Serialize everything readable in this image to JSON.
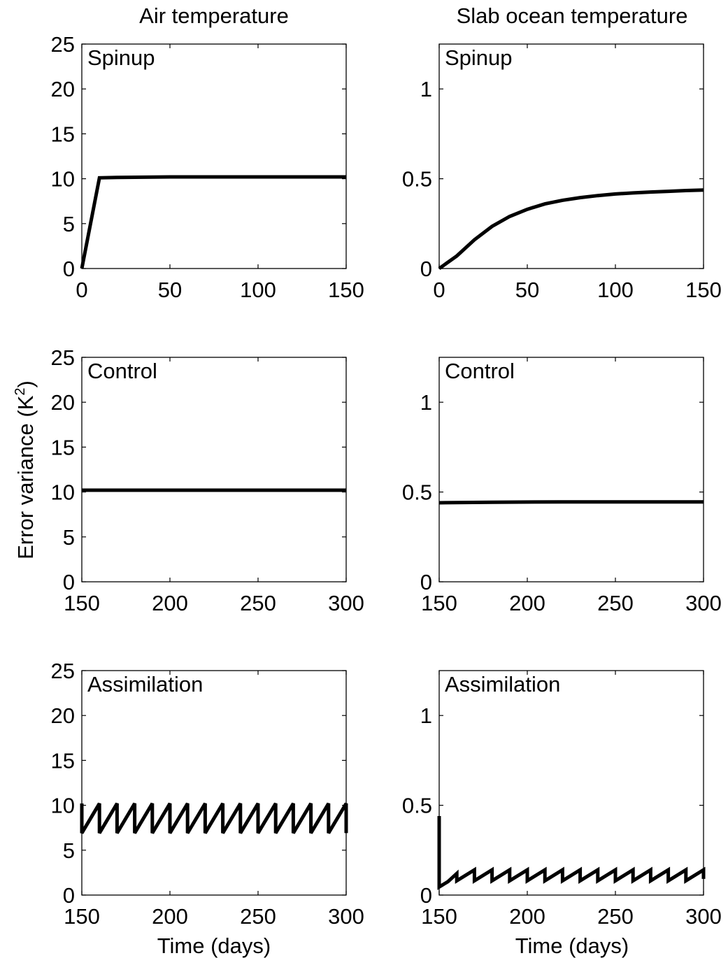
{
  "figure": {
    "column_titles": [
      "Air temperature",
      "Slab ocean temperature"
    ],
    "ylabel": "Error variance (K",
    "ylabel_sup": "2",
    "ylabel_close": ")",
    "xlabel": "Time (days)"
  },
  "chart_data": [
    {
      "type": "line",
      "panel": "Spinup",
      "column": "Air temperature",
      "xlim": [
        0,
        150
      ],
      "ylim": [
        0,
        25
      ],
      "xticks": [
        0,
        50,
        100,
        150
      ],
      "yticks": [
        0,
        5,
        10,
        15,
        20,
        25
      ],
      "grid": false,
      "series": [
        {
          "x": [
            0,
            10,
            20,
            50,
            100,
            150
          ],
          "y": [
            0,
            10.1,
            10.15,
            10.2,
            10.2,
            10.2
          ]
        }
      ]
    },
    {
      "type": "line",
      "panel": "Spinup",
      "column": "Slab ocean temperature",
      "xlim": [
        0,
        150
      ],
      "ylim": [
        0,
        1.25
      ],
      "xticks": [
        0,
        50,
        100,
        150
      ],
      "yticks": [
        0,
        0.5,
        1
      ],
      "grid": false,
      "series": [
        {
          "x": [
            0,
            10,
            20,
            30,
            40,
            50,
            60,
            70,
            80,
            90,
            100,
            110,
            120,
            130,
            140,
            150
          ],
          "y": [
            0,
            0.07,
            0.16,
            0.235,
            0.29,
            0.33,
            0.36,
            0.38,
            0.395,
            0.406,
            0.415,
            0.421,
            0.426,
            0.43,
            0.434,
            0.437
          ]
        }
      ]
    },
    {
      "type": "line",
      "panel": "Control",
      "column": "Air temperature",
      "xlim": [
        150,
        300
      ],
      "ylim": [
        0,
        25
      ],
      "xticks": [
        150,
        200,
        250,
        300
      ],
      "yticks": [
        0,
        5,
        10,
        15,
        20,
        25
      ],
      "grid": false,
      "series": [
        {
          "x": [
            150,
            300
          ],
          "y": [
            10.2,
            10.2
          ]
        }
      ]
    },
    {
      "type": "line",
      "panel": "Control",
      "column": "Slab ocean temperature",
      "xlim": [
        150,
        300
      ],
      "ylim": [
        0,
        1.25
      ],
      "xticks": [
        150,
        200,
        250,
        300
      ],
      "yticks": [
        0,
        0.5,
        1
      ],
      "grid": false,
      "series": [
        {
          "x": [
            150,
            180,
            220,
            260,
            300
          ],
          "y": [
            0.44,
            0.443,
            0.445,
            0.445,
            0.445
          ]
        }
      ]
    },
    {
      "type": "line",
      "panel": "Assimilation",
      "column": "Air temperature",
      "xlim": [
        150,
        300
      ],
      "ylim": [
        0,
        25
      ],
      "xticks": [
        150,
        200,
        250,
        300
      ],
      "yticks": [
        0,
        5,
        10,
        15,
        20,
        25
      ],
      "grid": false,
      "series": [
        {
          "x": [
            150,
            150,
            160,
            160,
            170,
            170,
            180,
            180,
            190,
            190,
            200,
            200,
            210,
            210,
            220,
            220,
            230,
            230,
            240,
            240,
            250,
            250,
            260,
            260,
            270,
            270,
            280,
            280,
            290,
            290,
            300,
            300
          ],
          "y": [
            10.2,
            6.9,
            10.2,
            6.9,
            10.2,
            6.9,
            10.2,
            6.9,
            10.2,
            6.9,
            10.2,
            6.9,
            10.2,
            6.9,
            10.2,
            6.9,
            10.2,
            6.9,
            10.2,
            6.9,
            10.2,
            6.9,
            10.2,
            6.9,
            10.2,
            6.9,
            10.2,
            6.9,
            10.2,
            6.9,
            10.2,
            6.9
          ]
        }
      ]
    },
    {
      "type": "line",
      "panel": "Assimilation",
      "column": "Slab ocean temperature",
      "xlim": [
        150,
        300
      ],
      "ylim": [
        0,
        1.25
      ],
      "xticks": [
        150,
        200,
        250,
        300
      ],
      "yticks": [
        0,
        0.5,
        1
      ],
      "grid": false,
      "series": [
        {
          "x": [
            150,
            150,
            155,
            160,
            160,
            170,
            170,
            180,
            180,
            190,
            190,
            200,
            200,
            210,
            210,
            220,
            220,
            230,
            230,
            240,
            240,
            250,
            250,
            260,
            260,
            270,
            270,
            280,
            280,
            290,
            290,
            300,
            300
          ],
          "y": [
            0.44,
            0.045,
            0.075,
            0.12,
            0.08,
            0.14,
            0.08,
            0.14,
            0.08,
            0.14,
            0.08,
            0.14,
            0.08,
            0.14,
            0.08,
            0.14,
            0.08,
            0.14,
            0.08,
            0.14,
            0.08,
            0.14,
            0.08,
            0.14,
            0.08,
            0.14,
            0.08,
            0.14,
            0.08,
            0.14,
            0.08,
            0.14,
            0.09
          ]
        }
      ]
    }
  ]
}
